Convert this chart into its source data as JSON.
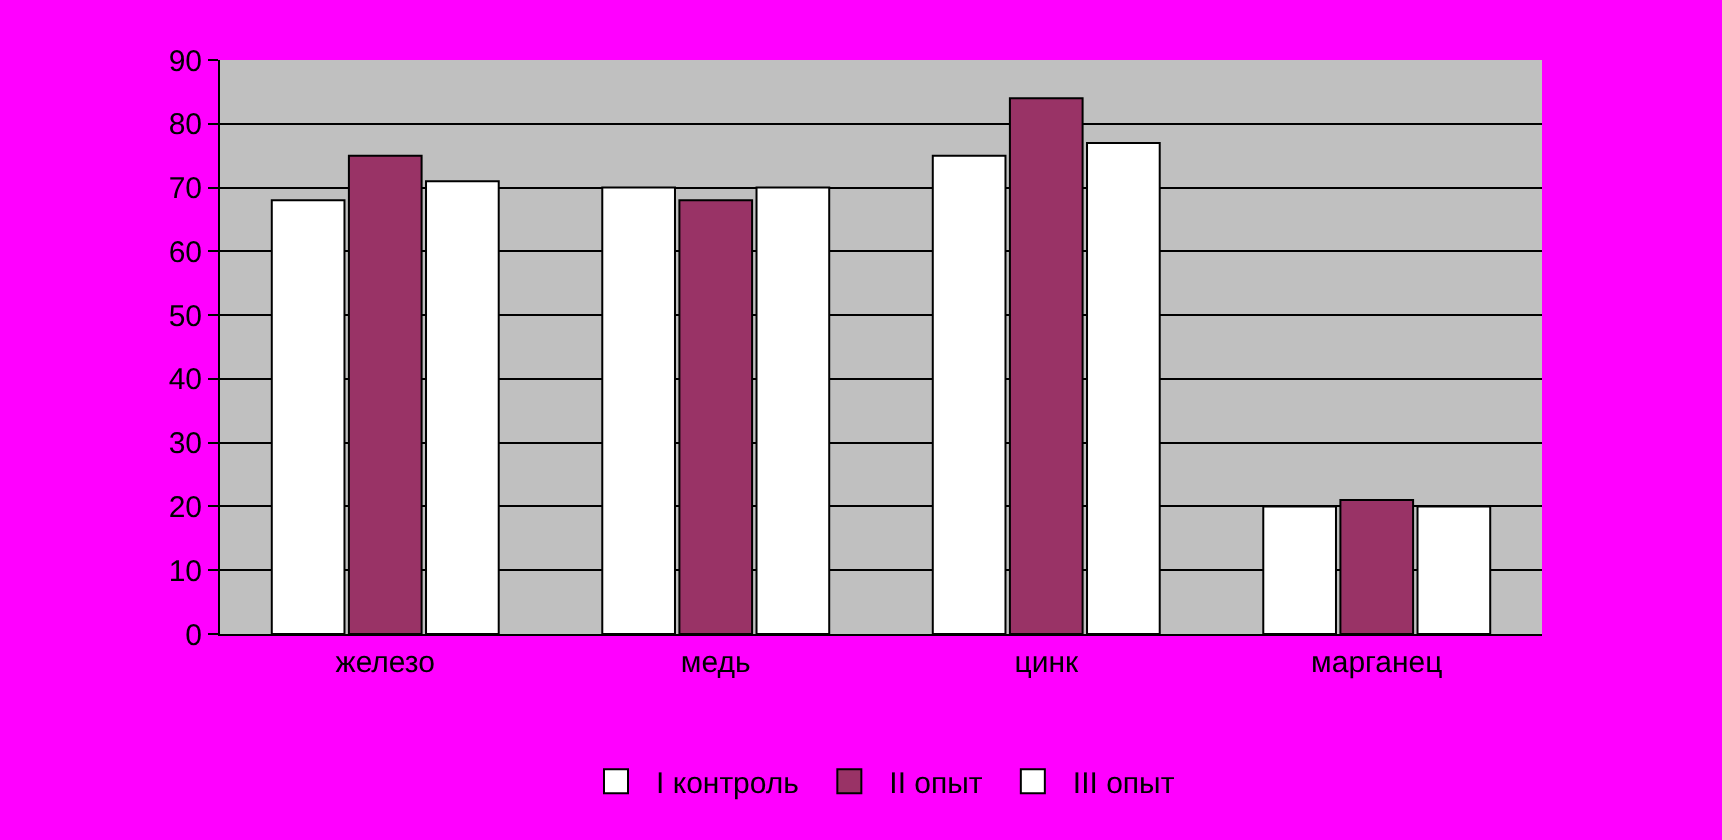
{
  "chart_data": {
    "type": "bar",
    "categories": [
      "железо",
      "медь",
      "цинк",
      "марганец"
    ],
    "series": [
      {
        "name": "I контроль",
        "color": "#ffffff",
        "values": [
          68,
          70,
          75,
          20
        ]
      },
      {
        "name": "II опыт",
        "color": "#993366",
        "values": [
          75,
          68,
          84,
          21
        ]
      },
      {
        "name": "III опыт",
        "color": "#ffffff",
        "values": [
          71,
          70,
          77,
          20
        ]
      }
    ],
    "ylim": [
      0,
      90
    ],
    "yticks": [
      0,
      10,
      20,
      30,
      40,
      50,
      60,
      70,
      80,
      90
    ],
    "grid": "y",
    "legend": "bottom"
  }
}
